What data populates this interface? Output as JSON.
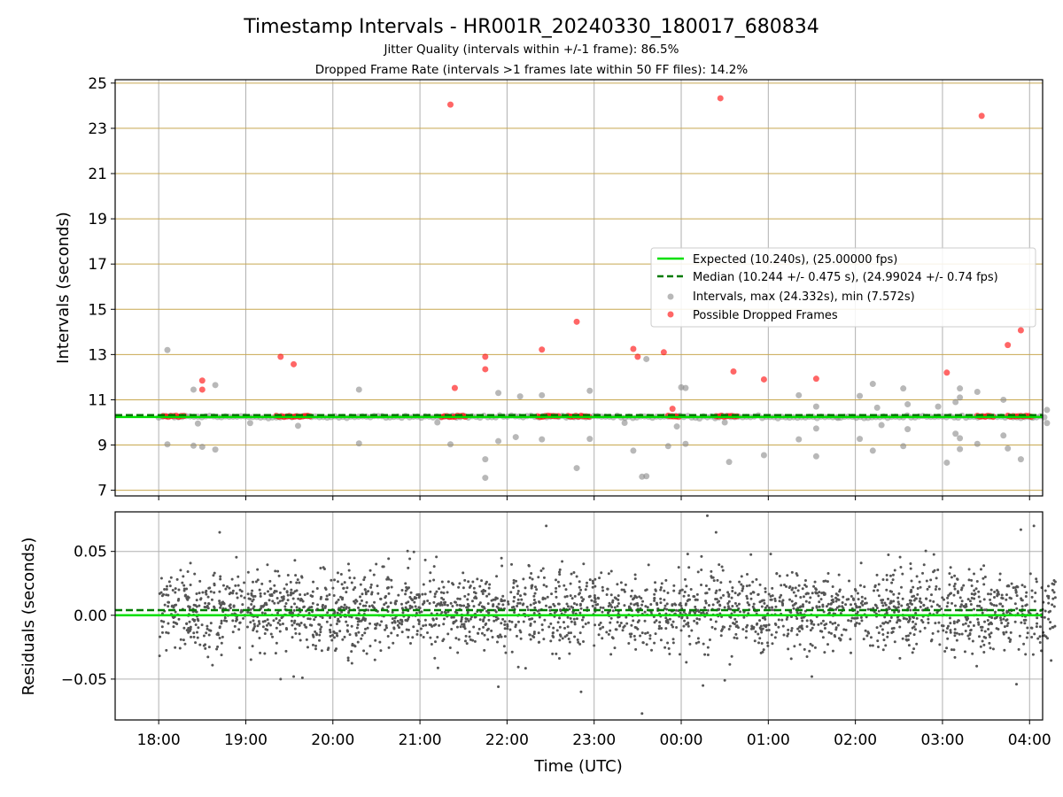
{
  "title": "Timestamp Intervals - HR001R_20240330_180017_680834",
  "subtitle1": "Jitter Quality (intervals within +/-1 frame): 86.5%",
  "subtitle2": "Dropped Frame Rate (intervals >1 frames late within 50 FF files): 14.2%",
  "colors": {
    "expected": "#00e000",
    "median": "#007a00",
    "intervals": "#888888",
    "dropped": "#ff0000",
    "hgrid": "#c8a850",
    "vgrid": "#b0b0b0",
    "residual": "#555555"
  },
  "chart_data": [
    {
      "type": "scatter",
      "ylabel": "Intervals (seconds)",
      "ylim": [
        6.75,
        25.15
      ],
      "yticks": [
        "7",
        "9",
        "11",
        "13",
        "15",
        "17",
        "19",
        "21",
        "23",
        "25"
      ],
      "xlim_hours": [
        17.5,
        28.15
      ],
      "grid": true,
      "legend_position": "center-right",
      "legend": [
        "Expected (10.240s), (25.00000 fps)",
        "Median (10.244 +/- 0.475 s), (24.99024 +/- 0.74 fps)",
        "Intervals, max (24.332s), min (7.572s)",
        "Possible Dropped Frames"
      ],
      "expected": 10.24,
      "median": 10.244,
      "intervals_outliers": [
        [
          18.1,
          13.2
        ],
        [
          18.1,
          9.03
        ],
        [
          18.4,
          11.45
        ],
        [
          18.4,
          8.97
        ],
        [
          18.45,
          9.95
        ],
        [
          18.5,
          8.92
        ],
        [
          18.65,
          11.65
        ],
        [
          18.65,
          8.8
        ],
        [
          19.05,
          9.97
        ],
        [
          19.6,
          9.85
        ],
        [
          20.3,
          11.45
        ],
        [
          20.3,
          9.07
        ],
        [
          21.2,
          10.0
        ],
        [
          21.35,
          9.03
        ],
        [
          21.75,
          8.37
        ],
        [
          21.75,
          7.55
        ],
        [
          21.9,
          11.3
        ],
        [
          21.9,
          9.17
        ],
        [
          22.1,
          9.35
        ],
        [
          22.15,
          11.15
        ],
        [
          22.4,
          11.2
        ],
        [
          22.4,
          9.25
        ],
        [
          22.8,
          7.98
        ],
        [
          22.95,
          11.4
        ],
        [
          22.95,
          9.27
        ],
        [
          23.35,
          9.98
        ],
        [
          23.45,
          8.75
        ],
        [
          23.55,
          7.6
        ],
        [
          23.6,
          7.62
        ],
        [
          23.6,
          12.8
        ],
        [
          23.85,
          8.95
        ],
        [
          23.95,
          9.82
        ],
        [
          24.0,
          11.55
        ],
        [
          24.05,
          11.52
        ],
        [
          24.05,
          9.05
        ],
        [
          24.5,
          10.0
        ],
        [
          24.55,
          8.25
        ],
        [
          24.95,
          8.55
        ],
        [
          25.35,
          11.2
        ],
        [
          25.35,
          9.25
        ],
        [
          25.55,
          10.7
        ],
        [
          25.55,
          9.73
        ],
        [
          25.55,
          8.5
        ],
        [
          25.8,
          10.2
        ],
        [
          26.05,
          11.17
        ],
        [
          26.05,
          9.27
        ],
        [
          26.2,
          11.7
        ],
        [
          26.2,
          8.75
        ],
        [
          26.25,
          10.65
        ],
        [
          26.3,
          9.88
        ],
        [
          26.55,
          11.5
        ],
        [
          26.55,
          8.95
        ],
        [
          26.6,
          10.8
        ],
        [
          26.6,
          9.7
        ],
        [
          26.95,
          10.7
        ],
        [
          27.05,
          8.22
        ],
        [
          27.15,
          10.9
        ],
        [
          27.15,
          9.5
        ],
        [
          27.2,
          11.5
        ],
        [
          27.2,
          11.1
        ],
        [
          27.2,
          9.3
        ],
        [
          27.2,
          8.82
        ],
        [
          27.4,
          11.35
        ],
        [
          27.4,
          9.05
        ],
        [
          27.7,
          11.0
        ],
        [
          27.7,
          9.42
        ],
        [
          27.75,
          8.85
        ],
        [
          27.9,
          8.37
        ],
        [
          28.2,
          10.55
        ],
        [
          28.2,
          9.97
        ]
      ],
      "dropped_isolated": [
        [
          18.5,
          11.85
        ],
        [
          18.5,
          11.45
        ],
        [
          19.4,
          12.9
        ],
        [
          19.55,
          12.57
        ],
        [
          21.35,
          24.05
        ],
        [
          21.4,
          11.52
        ],
        [
          21.75,
          12.9
        ],
        [
          21.75,
          12.35
        ],
        [
          22.4,
          13.22
        ],
        [
          22.8,
          14.45
        ],
        [
          23.45,
          13.25
        ],
        [
          23.5,
          12.9
        ],
        [
          23.8,
          13.1
        ],
        [
          23.9,
          10.6
        ],
        [
          24.45,
          24.33
        ],
        [
          24.6,
          12.25
        ],
        [
          24.95,
          11.9
        ],
        [
          25.55,
          11.93
        ],
        [
          27.05,
          12.2
        ],
        [
          27.45,
          23.55
        ],
        [
          27.75,
          13.42
        ],
        [
          27.9,
          14.07
        ]
      ],
      "dropped_clusters": [
        [
          18.05,
          18.3,
          10.27
        ],
        [
          19.35,
          19.75,
          10.27
        ],
        [
          21.25,
          21.55,
          10.27
        ],
        [
          22.35,
          22.6,
          10.27
        ],
        [
          22.7,
          22.95,
          10.27
        ],
        [
          23.85,
          24.0,
          10.27
        ],
        [
          24.4,
          24.65,
          10.27
        ],
        [
          27.4,
          27.6,
          10.27
        ],
        [
          27.75,
          28.05,
          10.27
        ]
      ]
    },
    {
      "type": "scatter",
      "xlabel": "Time (UTC)",
      "ylabel": "Residuals (seconds)",
      "ylim": [
        -0.082,
        0.081
      ],
      "yticks": [
        "−0.05",
        "0.00",
        "0.05"
      ],
      "xticks": [
        "18:00",
        "19:00",
        "20:00",
        "21:00",
        "22:00",
        "23:00",
        "00:00",
        "01:00",
        "02:00",
        "03:00",
        "04:00"
      ],
      "xlim_hours": [
        17.5,
        28.15
      ],
      "grid": true,
      "expected": 0.0,
      "median": 0.004,
      "points_time_range_hours": [
        18.0,
        28.3
      ],
      "point_count": 2600,
      "extreme_points": [
        [
          24.3,
          0.078
        ],
        [
          23.55,
          -0.077
        ],
        [
          22.85,
          -0.06
        ],
        [
          27.85,
          -0.054
        ],
        [
          21.9,
          -0.056
        ],
        [
          24.25,
          -0.055
        ],
        [
          24.4,
          0.065
        ],
        [
          22.45,
          0.07
        ],
        [
          27.9,
          0.067
        ],
        [
          28.05,
          0.07
        ],
        [
          18.7,
          0.065
        ],
        [
          19.4,
          -0.05
        ],
        [
          19.55,
          -0.048
        ],
        [
          19.65,
          -0.049
        ],
        [
          24.5,
          -0.051
        ],
        [
          25.5,
          -0.048
        ]
      ]
    }
  ]
}
